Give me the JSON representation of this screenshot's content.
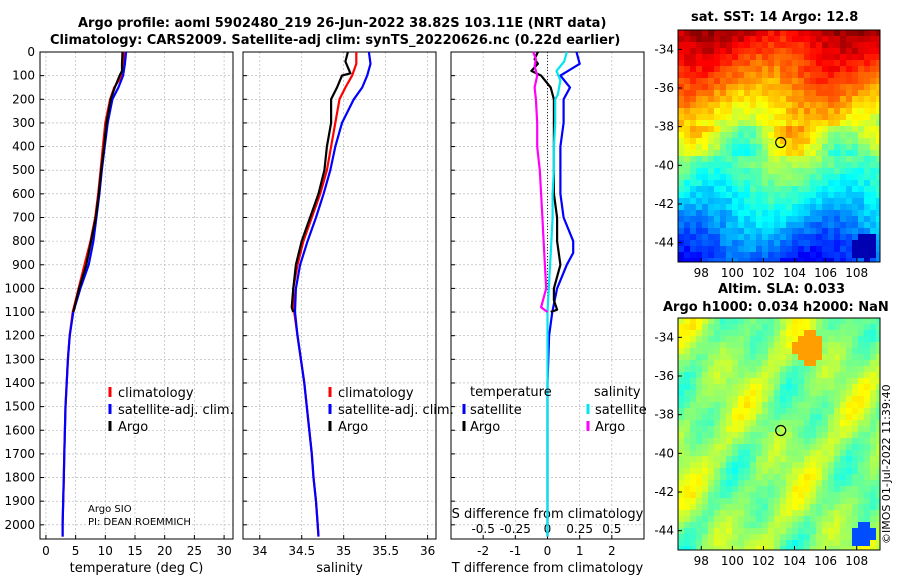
{
  "header": {
    "line1": "Argo profile: aoml 5902480_219 26-Jun-2022 38.82S 103.11E (NRT data)",
    "line2": "Climatology: CARS2009. Satellite-adj clim: synTS_20220626.nc (0.22d earlier)"
  },
  "colors": {
    "climatology": "#ff0000",
    "satellite": "#0000ff",
    "argo": "#000000",
    "argo_s": "#ff00ff",
    "sat_s": "#00e5ee",
    "grid": "#b0b0b0"
  },
  "depth_axis": {
    "ticks": [
      0,
      100,
      200,
      300,
      400,
      500,
      600,
      700,
      800,
      900,
      1000,
      1100,
      1200,
      1300,
      1400,
      1500,
      1600,
      1700,
      1800,
      1900,
      2000
    ],
    "range": [
      0,
      2060
    ]
  },
  "chart_data": [
    {
      "id": "temperature",
      "type": "line",
      "xlabel": "temperature (deg C)",
      "xlim": [
        -1,
        31.5
      ],
      "xticks": [
        0,
        5,
        10,
        15,
        20,
        25,
        30
      ],
      "legend": {
        "position": "middle-right",
        "entries": [
          "climatology",
          "satellite-adj. clim.",
          "Argo"
        ]
      },
      "annotation": [
        "Argo SIO",
        "PI: DEAN ROEMMICH"
      ],
      "series": [
        {
          "name": "climatology",
          "key": "climatology",
          "depth": [
            0,
            50,
            100,
            150,
            200,
            300,
            400,
            500,
            600,
            700,
            800,
            900,
            1000,
            1100,
            1200,
            1300,
            1400,
            1500,
            1600,
            1700,
            1800,
            1900,
            2000,
            2050
          ],
          "values": [
            13.2,
            13.0,
            12.8,
            11.5,
            10.8,
            10.0,
            9.6,
            9.2,
            8.8,
            8.3,
            7.5,
            6.5,
            5.5,
            4.5,
            4.0,
            3.7,
            3.5,
            3.3,
            3.2,
            3.1,
            3.0,
            2.9,
            2.8,
            2.8
          ]
        },
        {
          "name": "satellite-adj. clim.",
          "key": "satellite",
          "depth": [
            0,
            50,
            100,
            150,
            200,
            300,
            400,
            500,
            600,
            700,
            800,
            900,
            1000,
            1100,
            1200,
            1300,
            1400,
            1500,
            1600,
            1700,
            1800,
            1900,
            2000,
            2050
          ],
          "values": [
            13.5,
            13.3,
            13.0,
            12.2,
            11.2,
            10.4,
            9.9,
            9.4,
            9.0,
            8.5,
            8.0,
            7.2,
            5.8,
            4.6,
            4.0,
            3.7,
            3.5,
            3.3,
            3.2,
            3.1,
            3.0,
            2.9,
            2.8,
            2.8
          ]
        },
        {
          "name": "Argo",
          "key": "argo",
          "depth": [
            0,
            50,
            80,
            100,
            150,
            200,
            300,
            400,
            500,
            600,
            700,
            800,
            900,
            1000,
            1100
          ],
          "values": [
            12.9,
            12.8,
            12.8,
            12.4,
            11.6,
            10.9,
            10.2,
            9.8,
            9.3,
            8.9,
            8.4,
            7.6,
            6.8,
            5.6,
            4.6
          ]
        }
      ]
    },
    {
      "id": "salinity",
      "type": "line",
      "xlabel": "salinity",
      "xlim": [
        33.8,
        36.1
      ],
      "xticks": [
        34,
        34.5,
        35,
        35.5,
        36
      ],
      "legend": {
        "position": "middle-right",
        "entries": [
          "climatology",
          "satellite-adj. clim.",
          "Argo"
        ]
      },
      "series": [
        {
          "name": "climatology",
          "key": "climatology",
          "depth": [
            0,
            50,
            100,
            150,
            200,
            300,
            400,
            500,
            600,
            700,
            800,
            900,
            1000,
            1100,
            1200,
            1300,
            1400,
            1500,
            1600,
            1700,
            1800,
            1900,
            2000,
            2050
          ],
          "values": [
            35.15,
            35.15,
            35.1,
            35.02,
            34.95,
            34.9,
            34.85,
            34.8,
            34.72,
            34.62,
            34.52,
            34.45,
            34.4,
            34.41,
            34.45,
            34.49,
            34.53,
            34.56,
            34.59,
            34.62,
            34.64,
            34.67,
            34.69,
            34.7
          ]
        },
        {
          "name": "satellite-adj. clim.",
          "key": "satellite",
          "depth": [
            0,
            50,
            100,
            150,
            200,
            300,
            400,
            500,
            600,
            700,
            800,
            900,
            1000,
            1100,
            1200,
            1300,
            1400,
            1500,
            1600,
            1700,
            1800,
            1900,
            2000,
            2050
          ],
          "values": [
            35.3,
            35.32,
            35.28,
            35.22,
            35.12,
            34.98,
            34.9,
            34.84,
            34.76,
            34.67,
            34.57,
            34.48,
            34.43,
            34.42,
            34.45,
            34.49,
            34.53,
            34.56,
            34.59,
            34.62,
            34.64,
            34.67,
            34.69,
            34.7
          ]
        },
        {
          "name": "Argo",
          "key": "argo",
          "depth": [
            0,
            40,
            90,
            100,
            150,
            200,
            300,
            400,
            500,
            600,
            700,
            800,
            900,
            1000,
            1080,
            1100
          ],
          "values": [
            35.05,
            35.02,
            35.08,
            34.98,
            34.92,
            34.85,
            34.85,
            34.8,
            34.77,
            34.7,
            34.6,
            34.5,
            34.43,
            34.4,
            34.38,
            34.4
          ]
        }
      ]
    },
    {
      "id": "difference",
      "type": "line",
      "xlabel": "T difference from climatology",
      "xlabel_top": "S difference from climatology",
      "xlim": [
        -3,
        3
      ],
      "xticks": [
        -2,
        -1,
        0,
        1,
        2
      ],
      "xticklabels": [
        "-2",
        "-1",
        "0",
        "1",
        "2"
      ],
      "s_xticks": [
        -0.5,
        -0.25,
        0,
        0.25,
        0.5
      ],
      "s_xticklabels": [
        "-0.5",
        "-0.25",
        "0",
        "0.25",
        "0.5"
      ],
      "legend": {
        "position": "middle",
        "t_header": "temperature",
        "s_header": "salinity",
        "t_entries": [
          "satellite",
          "Argo"
        ],
        "s_entries": [
          "satellite",
          "Argo"
        ]
      },
      "series": [
        {
          "name": "T satellite",
          "key": "satellite",
          "depth": [
            0,
            50,
            100,
            150,
            200,
            300,
            400,
            500,
            600,
            700,
            800,
            850,
            900,
            1000,
            1100,
            1200,
            1400,
            1600,
            1800,
            2000,
            2050
          ],
          "values": [
            0.9,
            1.0,
            0.4,
            0.7,
            0.5,
            0.5,
            0.4,
            0.4,
            0.4,
            0.5,
            0.8,
            0.8,
            0.6,
            0.3,
            0.15,
            0.05,
            0,
            0,
            0,
            0,
            0
          ]
        },
        {
          "name": "T Argo",
          "key": "argo",
          "depth": [
            0,
            30,
            50,
            80,
            100,
            150,
            200,
            300,
            400,
            500,
            600,
            700,
            800,
            900,
            1000,
            1050,
            1090,
            1100
          ],
          "values": [
            -0.3,
            -0.4,
            -0.3,
            -0.5,
            -0.2,
            0.1,
            0.2,
            0.2,
            0.2,
            0.2,
            0.2,
            0.3,
            0.3,
            0.4,
            0.2,
            0.2,
            0.3,
            0.1
          ]
        },
        {
          "name": "S satellite",
          "key": "sat_s",
          "depth": [
            0,
            40,
            80,
            120,
            180,
            200,
            300,
            400,
            500,
            600,
            700,
            800,
            900,
            1000,
            1100,
            1200,
            1400,
            1600,
            1800,
            2000,
            2050
          ],
          "values": [
            0.15,
            0.13,
            0.07,
            0.1,
            0.08,
            0.06,
            0.06,
            0.05,
            0.05,
            0.04,
            0.04,
            0.03,
            0.02,
            0.01,
            0.0,
            0.0,
            0.0,
            0.0,
            0.0,
            0.0,
            0.0
          ]
        },
        {
          "name": "S Argo",
          "key": "argo_s",
          "depth": [
            0,
            30,
            60,
            100,
            150,
            200,
            300,
            400,
            500,
            600,
            700,
            800,
            900,
            1000,
            1080,
            1100
          ],
          "values": [
            -0.11,
            -0.09,
            -0.1,
            -0.08,
            -0.1,
            -0.09,
            -0.08,
            -0.08,
            -0.06,
            -0.05,
            -0.04,
            -0.03,
            -0.02,
            -0.01,
            -0.05,
            0.0
          ]
        }
      ]
    },
    {
      "id": "sst_map",
      "type": "heatmap",
      "title": "sat. SST: 14 Argo: 12.8",
      "xlim": [
        96.5,
        109.5
      ],
      "ylim": [
        -45,
        -33
      ],
      "xticks": [
        98,
        100,
        102,
        104,
        106,
        108
      ],
      "yticks": [
        -34,
        -36,
        -38,
        -40,
        -42,
        -44
      ],
      "point": {
        "lon": 103.11,
        "lat": -38.82
      }
    },
    {
      "id": "sla_map",
      "type": "heatmap",
      "title": "Altim. SLA: 0.033",
      "subtitle": "Argo h1000: 0.034 h2000: NaN",
      "xlim": [
        96.5,
        109.5
      ],
      "ylim": [
        -45,
        -33
      ],
      "xticks": [
        98,
        100,
        102,
        104,
        106,
        108
      ],
      "yticks": [
        -34,
        -36,
        -38,
        -40,
        -42,
        -44
      ],
      "point": {
        "lon": 103.11,
        "lat": -38.82
      }
    }
  ],
  "credit": "©IMOS 01-Jul-2022 11:39:40"
}
